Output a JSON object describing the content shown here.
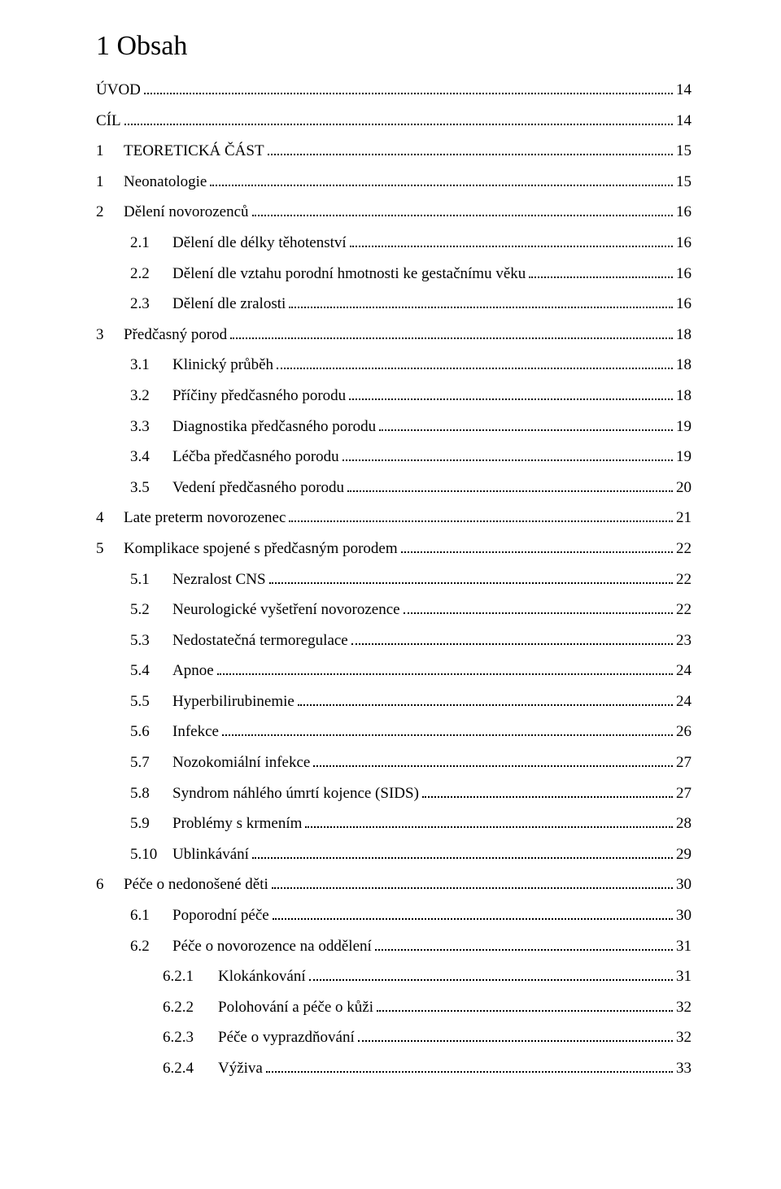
{
  "heading": "1  Obsah",
  "entries": [
    {
      "indent": 0,
      "num": "",
      "label": "ÚVOD",
      "page": "14"
    },
    {
      "indent": 0,
      "num": "",
      "label": "CÍL",
      "page": "14"
    },
    {
      "indent": 1,
      "num": "1",
      "label": "TEORETICKÁ ČÁST",
      "page": "15"
    },
    {
      "indent": 1,
      "num": "1",
      "label": "Neonatologie",
      "page": "15"
    },
    {
      "indent": 1,
      "num": "2",
      "label": "Dělení novorozenců",
      "page": "16"
    },
    {
      "indent": 2,
      "num": "2.1",
      "label": "Dělení dle délky těhotenství",
      "page": "16"
    },
    {
      "indent": 2,
      "num": "2.2",
      "label": "Dělení dle vztahu porodní hmotnosti ke gestačnímu věku",
      "page": "16"
    },
    {
      "indent": 2,
      "num": "2.3",
      "label": "Dělení dle zralosti",
      "page": "16"
    },
    {
      "indent": 1,
      "num": "3",
      "label": "Předčasný porod",
      "page": "18"
    },
    {
      "indent": 2,
      "num": "3.1",
      "label": "Klinický průběh",
      "page": "18"
    },
    {
      "indent": 2,
      "num": "3.2",
      "label": "Příčiny předčasného porodu",
      "page": "18"
    },
    {
      "indent": 2,
      "num": "3.3",
      "label": "Diagnostika předčasného porodu",
      "page": "19"
    },
    {
      "indent": 2,
      "num": "3.4",
      "label": "Léčba předčasného porodu",
      "page": "19"
    },
    {
      "indent": 2,
      "num": "3.5",
      "label": "Vedení předčasného porodu",
      "page": "20"
    },
    {
      "indent": 1,
      "num": "4",
      "label": "Late preterm novorozenec",
      "page": "21"
    },
    {
      "indent": 1,
      "num": "5",
      "label": "Komplikace spojené s předčasným porodem",
      "page": "22"
    },
    {
      "indent": 2,
      "num": "5.1",
      "label": "Nezralost CNS",
      "page": "22"
    },
    {
      "indent": 2,
      "num": "5.2",
      "label": "Neurologické vyšetření novorozence",
      "page": "22"
    },
    {
      "indent": 2,
      "num": "5.3",
      "label": "Nedostatečná termoregulace",
      "page": "23"
    },
    {
      "indent": 2,
      "num": "5.4",
      "label": "Apnoe",
      "page": "24"
    },
    {
      "indent": 2,
      "num": "5.5",
      "label": "Hyperbilirubinemie",
      "page": "24"
    },
    {
      "indent": 2,
      "num": "5.6",
      "label": "Infekce",
      "page": "26"
    },
    {
      "indent": 2,
      "num": "5.7",
      "label": "Nozokomiální infekce",
      "page": "27"
    },
    {
      "indent": 2,
      "num": "5.8",
      "label": "Syndrom náhlého úmrtí kojence (SIDS)",
      "page": "27"
    },
    {
      "indent": 2,
      "num": "5.9",
      "label": "Problémy s krmením",
      "page": "28"
    },
    {
      "indent": 2,
      "num": "5.10",
      "label": "Ublinkávání",
      "page": "29"
    },
    {
      "indent": 1,
      "num": "6",
      "label": "Péče o nedonošené děti",
      "page": "30"
    },
    {
      "indent": 2,
      "num": "6.1",
      "label": "Poporodní péče",
      "page": "30"
    },
    {
      "indent": 2,
      "num": "6.2",
      "label": "Péče o novorozence na oddělení",
      "page": "31"
    },
    {
      "indent": 3,
      "num": "6.2.1",
      "label": "Klokánkování",
      "page": "31"
    },
    {
      "indent": 3,
      "num": "6.2.2",
      "label": "Polohování a péče o kůži",
      "page": "32"
    },
    {
      "indent": 3,
      "num": "6.2.3",
      "label": "Péče o vyprazdňování",
      "page": "32"
    },
    {
      "indent": 3,
      "num": "6.2.4",
      "label": "Výživa",
      "page": "33"
    }
  ]
}
